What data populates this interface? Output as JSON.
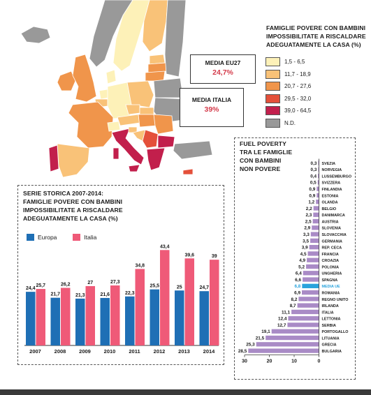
{
  "map": {
    "title_lines": [
      "FAMIGLIE POVERE CON BAMBINI",
      "IMPOSSIBILITATE A RISCALDARE",
      "ADEGUATAMENTE LA CASA (%)"
    ],
    "legend": [
      {
        "label": "1,5 - 6,5",
        "color": "#fdf1b8"
      },
      {
        "label": "11,7 - 18,9",
        "color": "#f9c278"
      },
      {
        "label": "20,7 - 27,6",
        "color": "#f0954b"
      },
      {
        "label": "29,5 - 32,0",
        "color": "#e4503a"
      },
      {
        "label": "39,0 - 64,5",
        "color": "#c21f4c"
      },
      {
        "label": "N.D.",
        "color": "#999999"
      }
    ],
    "callout_eu": {
      "label": "MEDIA EU27",
      "value": "24,7%"
    },
    "callout_italy": {
      "label": "MEDIA ITALIA",
      "value": "39%"
    }
  },
  "bar_panel": {
    "title_lines": [
      "SERIE STORICA 2007-2014:",
      "FAMIGLIE POVERE CON BAMBINI",
      "IMPOSSIBILITATE A RISCALDARE",
      "ADEGUATAMENTE LA CASA (%)"
    ],
    "legend": [
      {
        "label": "Europa",
        "color": "#1f6fb5"
      },
      {
        "label": "Italia",
        "color": "#ef5a78"
      }
    ]
  },
  "fuel_panel": {
    "title_lines": [
      "FUEL POVERTY",
      "TRA LE FAMIGLIE",
      "CON BAMBINI",
      "NON POVERE"
    ]
  },
  "chart_data": [
    {
      "type": "bar",
      "categories": [
        "2007",
        "2008",
        "2009",
        "2010",
        "2011",
        "2012",
        "2013",
        "2014"
      ],
      "series": [
        {
          "name": "Europa",
          "color": "#1f6fb5",
          "values": [
            24.4,
            21.7,
            21.3,
            21.6,
            22.3,
            25.5,
            25,
            24.7
          ],
          "labels": [
            "24,4",
            "21,7",
            "21,3",
            "21,6",
            "22,3",
            "25,5",
            "25",
            "24,7"
          ]
        },
        {
          "name": "Italia",
          "color": "#ef5a78",
          "values": [
            25.7,
            26.2,
            27,
            27.3,
            34.8,
            43.4,
            39.6,
            39
          ],
          "labels": [
            "25,7",
            "26,2",
            "27",
            "27,3",
            "34,8",
            "43,4",
            "39,6",
            "39"
          ]
        }
      ],
      "ylim": [
        0,
        45
      ]
    },
    {
      "type": "bar",
      "orientation": "horizontal",
      "color": "#a98bc6",
      "highlight_color": "#29a3dc",
      "categories": [
        "SVEZIA",
        "NORVEGIA",
        "LUSSEMBURGO",
        "SVIZZERA",
        "FINLANDIA",
        "ESTONIA",
        "OLANDA",
        "BELGIO",
        "DANIMARCA",
        "AUSTRIA",
        "SLOVENIA",
        "SLOVACCHIA",
        "GERMANIA",
        "REP. CECA",
        "FRANCIA",
        "CROAZIA",
        "POLONIA",
        "UNGHERIA",
        "SPAGNA",
        "MEDIA UE",
        "ROMANIA",
        "REGNO UNITO",
        "IRLANDA",
        "ITALIA",
        "LETTONIA",
        "SERBIA",
        "PORTOGALLO",
        "LITUANIA",
        "GRECIA",
        "BULGARIA"
      ],
      "values": [
        0.3,
        0.3,
        0.4,
        0.5,
        0.9,
        0.9,
        1.2,
        2.2,
        2.3,
        2.5,
        2.9,
        3.3,
        3.5,
        3.9,
        4.5,
        4.9,
        5.2,
        6.4,
        6.6,
        6.8,
        6.9,
        8.2,
        8.7,
        11.1,
        12.4,
        12.7,
        19.1,
        21.5,
        25.3,
        28.5
      ],
      "labels": [
        "0,3",
        "0,3",
        "0,4",
        "0,5",
        "0,9",
        "0,9",
        "1,2",
        "2,2",
        "2,3",
        "2,5",
        "2,9",
        "3,3",
        "3,5",
        "3,9",
        "4,5",
        "4,9",
        "5,2",
        "6,4",
        "6,6",
        "6,8",
        "6,9",
        "8,2",
        "8,7",
        "11,1",
        "12,4",
        "12,7",
        "19,1",
        "21,5",
        "25,3",
        "28,5"
      ],
      "highlight": "MEDIA UE",
      "xticks": [
        "30",
        "20",
        "10",
        "0"
      ],
      "xlim": [
        30,
        0
      ]
    }
  ]
}
